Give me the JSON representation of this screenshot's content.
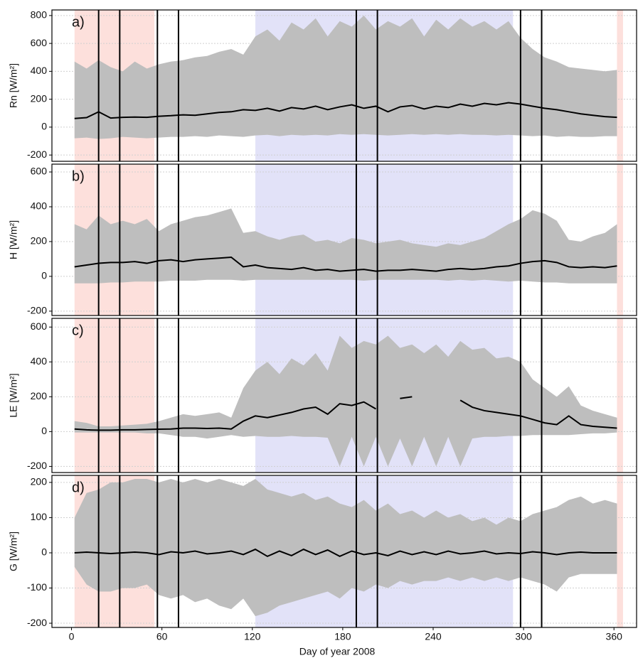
{
  "chart_data": [
    {
      "type": "band-line",
      "panel_label": "a)",
      "ylabel": "Rn [W/m²]",
      "xlim": [
        -13,
        375
      ],
      "ylim": [
        -245,
        840
      ],
      "yticks": [
        -200,
        0,
        200,
        400,
        600,
        800
      ],
      "grid": true,
      "line_color": "#000000",
      "band_color": "#bebebe",
      "shaded_regions": [
        {
          "start": 2,
          "end": 55,
          "color": "#fde0dc"
        },
        {
          "start": 122,
          "end": 293,
          "color": "#e2e2f8"
        },
        {
          "start": 362,
          "end": 366,
          "color": "#fde0dc"
        }
      ],
      "vlines": [
        18,
        32,
        57,
        71,
        189,
        203,
        298,
        312
      ],
      "x": [
        2,
        10,
        18,
        26,
        34,
        42,
        50,
        58,
        66,
        74,
        82,
        90,
        98,
        106,
        114,
        122,
        130,
        138,
        146,
        154,
        162,
        170,
        178,
        186,
        194,
        202,
        210,
        218,
        226,
        234,
        242,
        250,
        258,
        266,
        274,
        282,
        290,
        298,
        306,
        314,
        322,
        330,
        338,
        346,
        354,
        362
      ],
      "values": [
        62,
        68,
        110,
        65,
        70,
        72,
        70,
        78,
        82,
        88,
        85,
        95,
        105,
        110,
        125,
        120,
        135,
        115,
        140,
        130,
        150,
        125,
        145,
        160,
        135,
        150,
        110,
        145,
        155,
        130,
        150,
        140,
        165,
        150,
        170,
        160,
        175,
        165,
        150,
        135,
        125,
        110,
        95,
        85,
        75,
        70
      ],
      "band_upper": [
        470,
        420,
        480,
        430,
        400,
        470,
        420,
        450,
        470,
        480,
        500,
        510,
        540,
        560,
        520,
        650,
        700,
        620,
        750,
        700,
        780,
        650,
        760,
        720,
        800,
        700,
        760,
        720,
        780,
        650,
        770,
        700,
        780,
        720,
        760,
        700,
        760,
        640,
        560,
        500,
        470,
        430,
        420,
        410,
        400,
        410
      ],
      "band_lower": [
        -80,
        -75,
        -85,
        -80,
        -70,
        -75,
        -80,
        -75,
        -70,
        -70,
        -65,
        -70,
        -60,
        -65,
        -70,
        -60,
        -55,
        -65,
        -55,
        -60,
        -55,
        -60,
        -50,
        -55,
        -50,
        -55,
        -60,
        -55,
        -50,
        -55,
        -50,
        -55,
        -50,
        -55,
        -55,
        -60,
        -55,
        -60,
        -65,
        -60,
        -70,
        -65,
        -70,
        -70,
        -65,
        -65
      ]
    },
    {
      "type": "band-line",
      "panel_label": "b)",
      "ylabel": "H [W/m²]",
      "xlim": [
        -13,
        375
      ],
      "ylim": [
        -225,
        645
      ],
      "yticks": [
        -200,
        0,
        200,
        400,
        600
      ],
      "grid": true,
      "line_color": "#000000",
      "band_color": "#bebebe",
      "shaded_regions": [
        {
          "start": 2,
          "end": 55,
          "color": "#fde0dc"
        },
        {
          "start": 122,
          "end": 293,
          "color": "#e2e2f8"
        },
        {
          "start": 362,
          "end": 366,
          "color": "#fde0dc"
        }
      ],
      "vlines": [
        18,
        32,
        57,
        71,
        189,
        203,
        298,
        312
      ],
      "x": [
        2,
        10,
        18,
        26,
        34,
        42,
        50,
        58,
        66,
        74,
        82,
        90,
        98,
        106,
        114,
        122,
        130,
        138,
        146,
        154,
        162,
        170,
        178,
        186,
        194,
        202,
        210,
        218,
        226,
        234,
        242,
        250,
        258,
        266,
        274,
        282,
        290,
        298,
        306,
        314,
        322,
        330,
        338,
        346,
        354,
        362
      ],
      "values": [
        55,
        65,
        75,
        80,
        80,
        85,
        75,
        90,
        95,
        85,
        95,
        100,
        105,
        110,
        55,
        65,
        50,
        45,
        40,
        50,
        35,
        40,
        30,
        35,
        40,
        30,
        35,
        35,
        40,
        35,
        30,
        40,
        45,
        40,
        45,
        55,
        60,
        75,
        85,
        90,
        80,
        55,
        50,
        55,
        50,
        60
      ],
      "band_upper": [
        300,
        270,
        350,
        300,
        320,
        300,
        330,
        260,
        300,
        320,
        340,
        350,
        370,
        390,
        250,
        260,
        230,
        210,
        230,
        240,
        200,
        210,
        190,
        220,
        210,
        190,
        200,
        210,
        190,
        180,
        170,
        190,
        180,
        200,
        220,
        260,
        300,
        330,
        380,
        360,
        320,
        210,
        200,
        230,
        250,
        300
      ],
      "band_lower": [
        -40,
        -40,
        -40,
        -35,
        -35,
        -30,
        -30,
        -30,
        -25,
        -25,
        -25,
        -20,
        -20,
        -20,
        -25,
        -20,
        -20,
        -20,
        -20,
        -20,
        -20,
        -20,
        -20,
        -20,
        -25,
        -20,
        -20,
        -20,
        -20,
        -20,
        -20,
        -25,
        -20,
        -25,
        -20,
        -25,
        -30,
        -25,
        -30,
        -35,
        -35,
        -40,
        -40,
        -40,
        -40,
        -40
      ]
    },
    {
      "type": "band-line",
      "panel_label": "c)",
      "ylabel": "LE [W/m²]",
      "xlim": [
        -13,
        375
      ],
      "ylim": [
        -235,
        650
      ],
      "yticks": [
        -200,
        0,
        200,
        400,
        600
      ],
      "grid": true,
      "line_color": "#000000",
      "band_color": "#bebebe",
      "shaded_regions": [
        {
          "start": 2,
          "end": 55,
          "color": "#fde0dc"
        },
        {
          "start": 122,
          "end": 293,
          "color": "#e2e2f8"
        },
        {
          "start": 362,
          "end": 366,
          "color": "#fde0dc"
        }
      ],
      "vlines": [
        18,
        32,
        57,
        71,
        189,
        203,
        298,
        312
      ],
      "x": [
        2,
        10,
        18,
        26,
        34,
        42,
        50,
        58,
        66,
        74,
        82,
        90,
        98,
        106,
        114,
        122,
        130,
        138,
        146,
        154,
        162,
        170,
        178,
        186,
        194,
        202,
        210,
        218,
        226,
        234,
        242,
        250,
        258,
        266,
        274,
        282,
        290,
        298,
        306,
        314,
        322,
        330,
        338,
        346,
        354,
        362
      ],
      "values": [
        15,
        10,
        8,
        8,
        10,
        10,
        12,
        14,
        15,
        20,
        20,
        18,
        20,
        15,
        60,
        90,
        80,
        95,
        110,
        130,
        140,
        100,
        160,
        150,
        170,
        130,
        null,
        190,
        200,
        null,
        170,
        null,
        180,
        140,
        120,
        110,
        100,
        90,
        70,
        50,
        40,
        90,
        40,
        30,
        25,
        20
      ],
      "band_upper": [
        60,
        50,
        30,
        30,
        35,
        40,
        45,
        60,
        80,
        100,
        90,
        100,
        110,
        80,
        250,
        350,
        400,
        330,
        420,
        380,
        450,
        350,
        550,
        480,
        520,
        500,
        550,
        480,
        500,
        450,
        500,
        430,
        520,
        470,
        480,
        420,
        430,
        400,
        300,
        250,
        200,
        260,
        150,
        120,
        100,
        80
      ],
      "band_lower": [
        -5,
        -5,
        -5,
        -5,
        -5,
        -5,
        -10,
        -10,
        -20,
        -30,
        -30,
        -40,
        -30,
        -20,
        -30,
        -25,
        -30,
        -30,
        -25,
        -30,
        -30,
        -35,
        -200,
        -30,
        -200,
        -30,
        -200,
        -40,
        -200,
        -30,
        -200,
        -30,
        -200,
        -40,
        -30,
        -30,
        -25,
        -25,
        -20,
        -20,
        -20,
        -20,
        -15,
        -10,
        -10,
        -5
      ]
    },
    {
      "type": "band-line",
      "panel_label": "d)",
      "ylabel": "G [W/m²]",
      "xlabel": "Day of year 2008",
      "xlim": [
        -13,
        375
      ],
      "xticks": [
        0,
        60,
        120,
        180,
        240,
        300,
        360
      ],
      "ylim": [
        -212,
        220
      ],
      "yticks": [
        -200,
        -100,
        0,
        100,
        200
      ],
      "grid": true,
      "line_color": "#000000",
      "band_color": "#bebebe",
      "shaded_regions": [
        {
          "start": 2,
          "end": 55,
          "color": "#fde0dc"
        },
        {
          "start": 122,
          "end": 293,
          "color": "#e2e2f8"
        },
        {
          "start": 362,
          "end": 366,
          "color": "#fde0dc"
        }
      ],
      "vlines": [
        18,
        32,
        57,
        71,
        189,
        203,
        298,
        312
      ],
      "x": [
        2,
        10,
        18,
        26,
        34,
        42,
        50,
        58,
        66,
        74,
        82,
        90,
        98,
        106,
        114,
        122,
        130,
        138,
        146,
        154,
        162,
        170,
        178,
        186,
        194,
        202,
        210,
        218,
        226,
        234,
        242,
        250,
        258,
        266,
        274,
        282,
        290,
        298,
        306,
        314,
        322,
        330,
        338,
        346,
        354,
        362
      ],
      "values": [
        0,
        2,
        0,
        -2,
        0,
        2,
        0,
        -5,
        3,
        0,
        5,
        -3,
        0,
        5,
        -5,
        10,
        -10,
        5,
        -8,
        10,
        -5,
        8,
        -10,
        5,
        -5,
        0,
        -8,
        5,
        -5,
        3,
        -5,
        5,
        -3,
        0,
        5,
        -3,
        0,
        -2,
        3,
        0,
        -5,
        0,
        2,
        0,
        0,
        0
      ],
      "band_upper": [
        100,
        170,
        180,
        200,
        200,
        210,
        210,
        200,
        210,
        200,
        210,
        200,
        210,
        200,
        190,
        210,
        180,
        170,
        160,
        170,
        150,
        160,
        140,
        130,
        150,
        120,
        140,
        110,
        120,
        100,
        120,
        100,
        110,
        90,
        100,
        80,
        100,
        90,
        110,
        120,
        130,
        150,
        160,
        140,
        150,
        140
      ],
      "band_lower": [
        -40,
        -90,
        -110,
        -110,
        -100,
        -100,
        -90,
        -120,
        -130,
        -120,
        -140,
        -130,
        -150,
        -160,
        -130,
        -180,
        -170,
        -150,
        -140,
        -130,
        -120,
        -110,
        -130,
        -100,
        -110,
        -90,
        -100,
        -80,
        -90,
        -80,
        -80,
        -70,
        -80,
        -70,
        -80,
        -70,
        -80,
        -70,
        -80,
        -90,
        -110,
        -70,
        -60,
        -60,
        -60,
        -60
      ]
    }
  ]
}
